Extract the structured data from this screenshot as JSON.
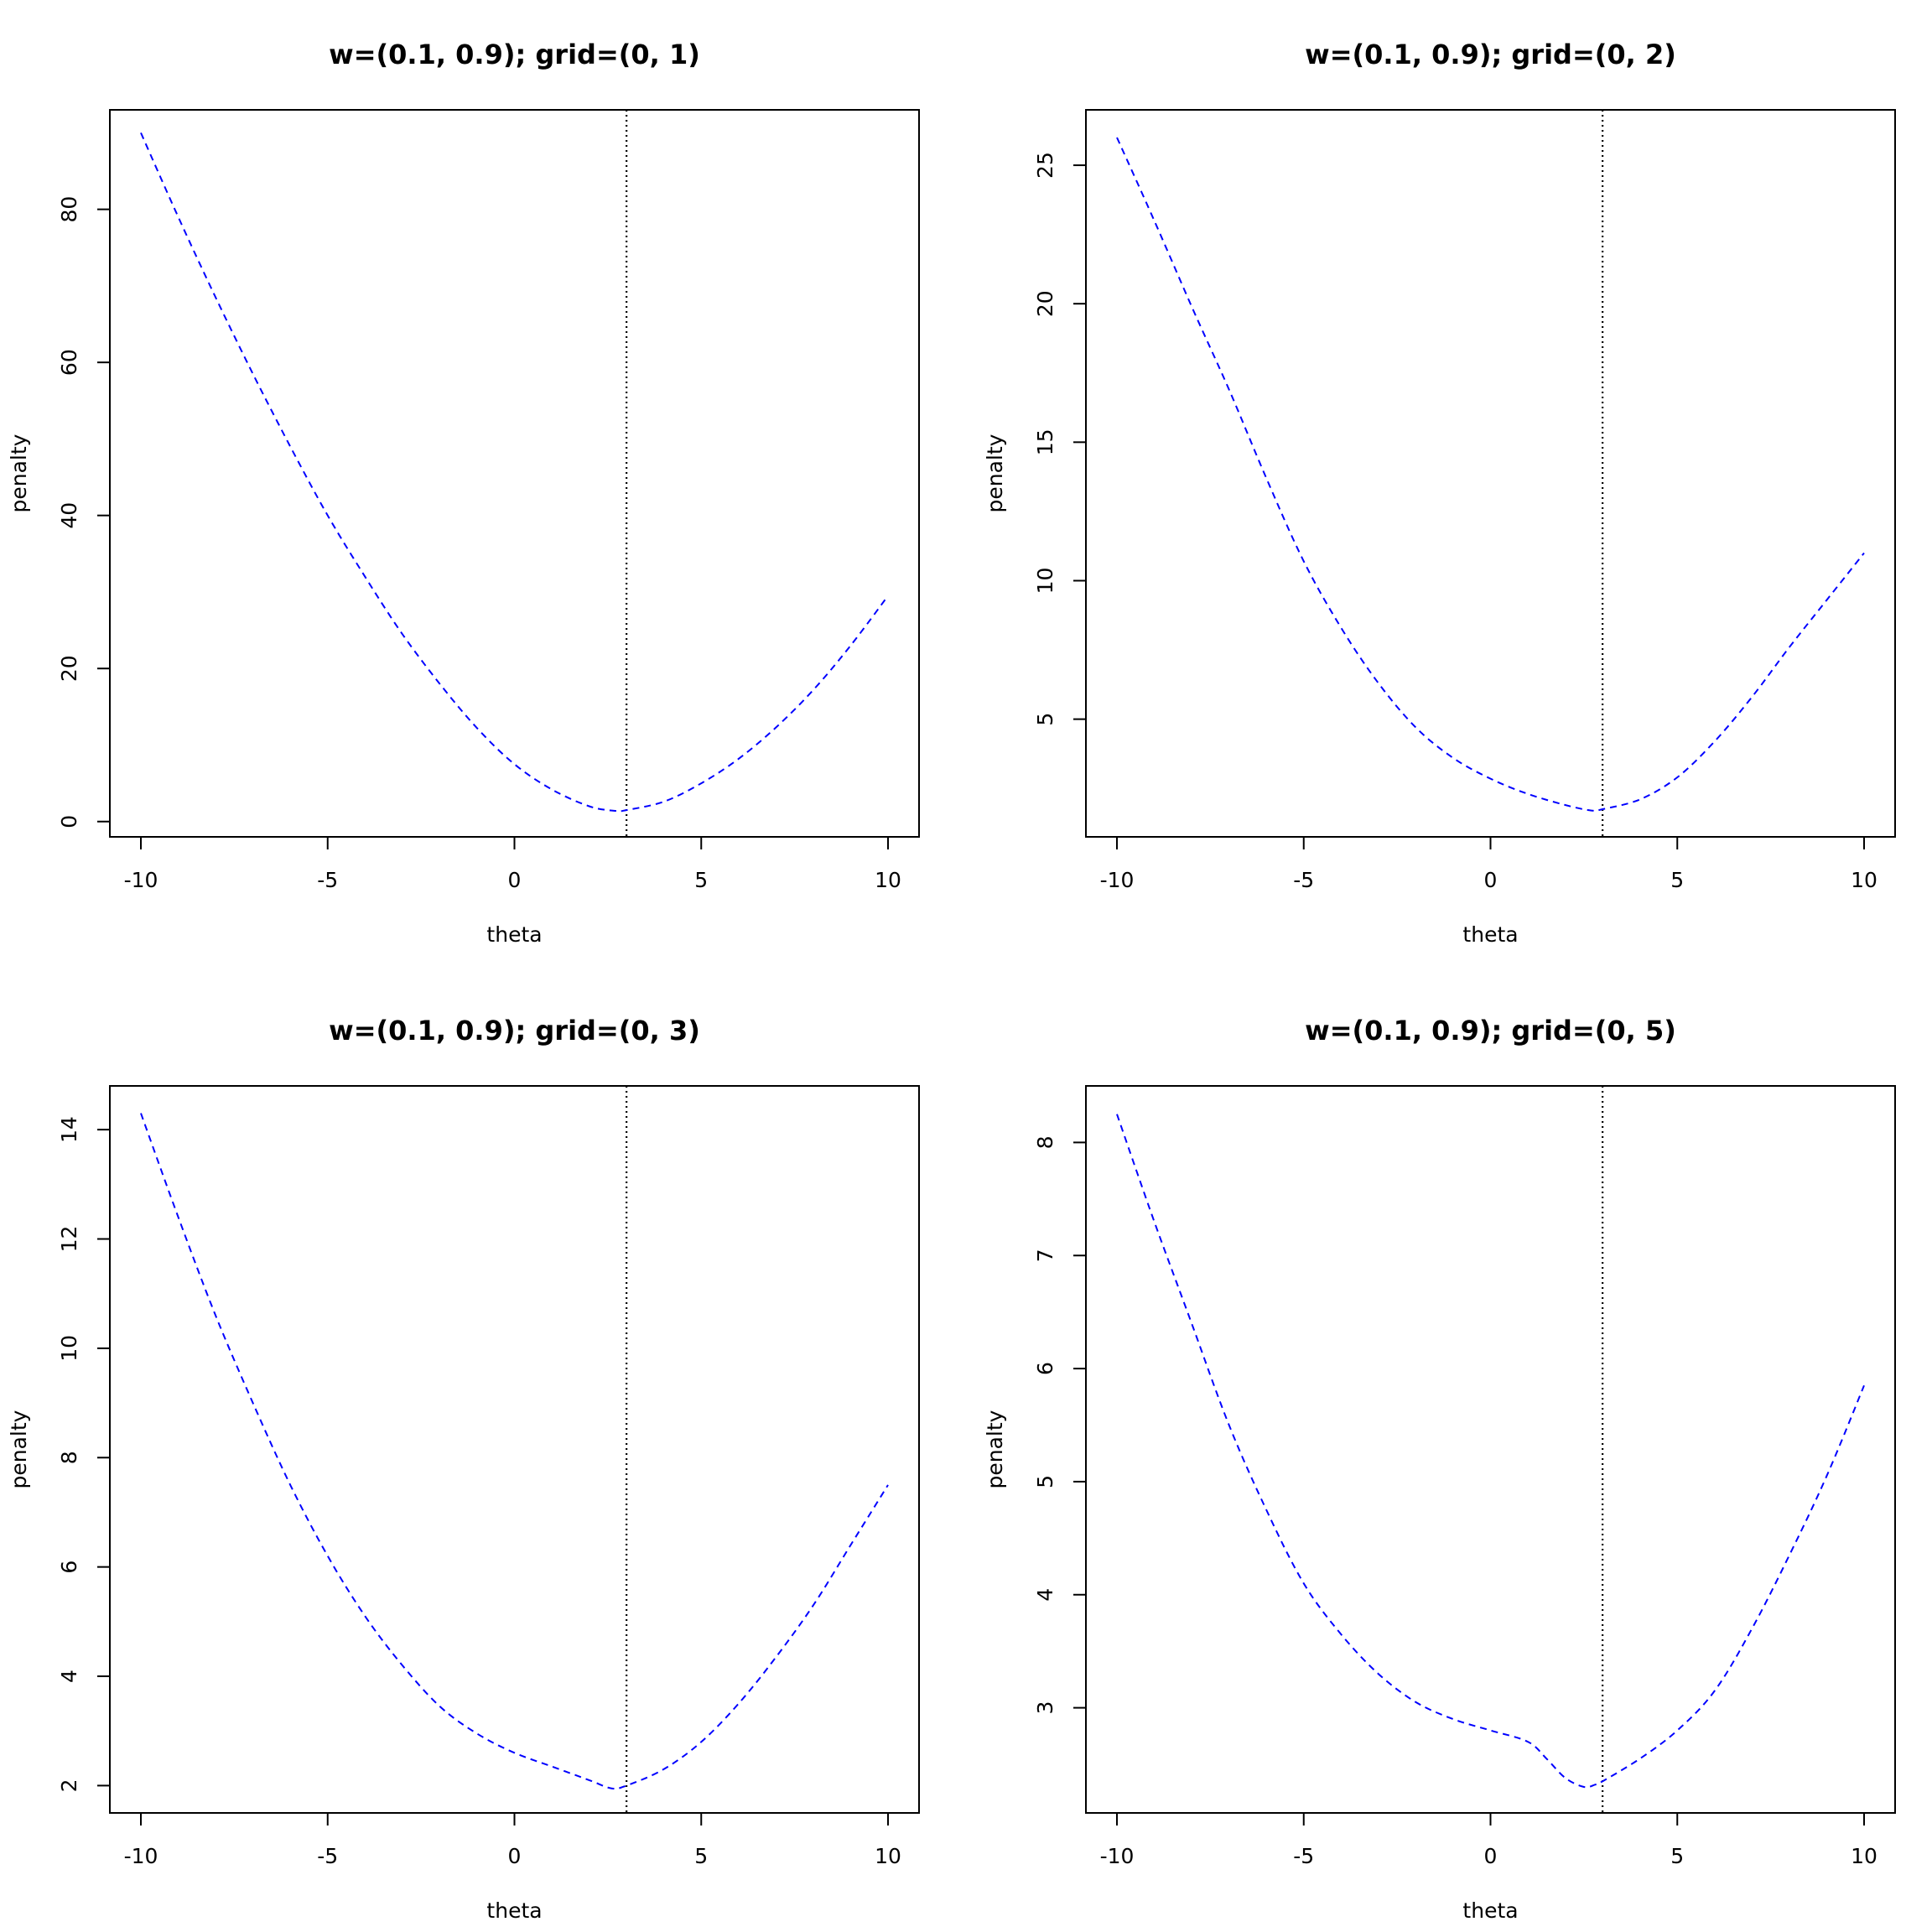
{
  "chart_data": [
    {
      "type": "line",
      "title": "w=(0.1, 0.9); grid=(0, 1)",
      "xlabel": "theta",
      "ylabel": "penalty",
      "xlim": [
        -10,
        10
      ],
      "ylim": [
        -2,
        93
      ],
      "xticks": [
        -10,
        -5,
        0,
        5,
        10
      ],
      "yticks": [
        0,
        20,
        40,
        60,
        80
      ],
      "vline": 3,
      "series": [
        {
          "color": "#0000FF",
          "linestyle": "dashed",
          "x": [
            -10,
            -9,
            -8,
            -7,
            -6,
            -5,
            -4,
            -3,
            -2,
            -1,
            0,
            1,
            2,
            2.7,
            3,
            4,
            5,
            6,
            7,
            8,
            9,
            10
          ],
          "y": [
            90,
            79,
            68.5,
            58.5,
            49,
            40,
            32,
            24.5,
            18,
            12.2,
            7.5,
            4.2,
            2.0,
            1.4,
            1.5,
            2.6,
            5.0,
            8.2,
            12.3,
            17.2,
            23,
            29.5
          ]
        }
      ]
    },
    {
      "type": "line",
      "title": "w=(0.1, 0.9); grid=(0, 2)",
      "xlabel": "theta",
      "ylabel": "penalty",
      "xlim": [
        -10,
        10
      ],
      "ylim": [
        0.75,
        27
      ],
      "xticks": [
        -10,
        -5,
        0,
        5,
        10
      ],
      "yticks": [
        5,
        10,
        15,
        20,
        25
      ],
      "vline": 3,
      "series": [
        {
          "color": "#0000FF",
          "linestyle": "dashed",
          "x": [
            -10,
            -9,
            -8,
            -7,
            -6,
            -5,
            -4,
            -3,
            -2,
            -1,
            0,
            1,
            2,
            2.7,
            3,
            4,
            5,
            6,
            7,
            8,
            9,
            10
          ],
          "y": [
            26.0,
            23.0,
            19.9,
            16.9,
            13.7,
            10.7,
            8.3,
            6.3,
            4.7,
            3.6,
            2.85,
            2.3,
            1.9,
            1.7,
            1.75,
            2.1,
            2.9,
            4.2,
            5.8,
            7.6,
            9.3,
            11.0
          ]
        }
      ]
    },
    {
      "type": "line",
      "title": "w=(0.1, 0.9); grid=(0, 3)",
      "xlabel": "theta",
      "ylabel": "penalty",
      "xlim": [
        -10,
        10
      ],
      "ylim": [
        1.5,
        14.8
      ],
      "xticks": [
        -10,
        -5,
        0,
        5,
        10
      ],
      "yticks": [
        2,
        4,
        6,
        8,
        10,
        12,
        14
      ],
      "vline": 3,
      "series": [
        {
          "color": "#0000FF",
          "linestyle": "dashed",
          "x": [
            -10,
            -9,
            -8,
            -7,
            -6,
            -5,
            -4,
            -3,
            -2,
            -1,
            0,
            1,
            2,
            2.6,
            3,
            4,
            5,
            6,
            7,
            8,
            9,
            10
          ],
          "y": [
            14.3,
            12.4,
            10.6,
            9.0,
            7.5,
            6.2,
            5.1,
            4.2,
            3.45,
            2.95,
            2.6,
            2.35,
            2.1,
            1.95,
            2.0,
            2.3,
            2.8,
            3.5,
            4.35,
            5.3,
            6.4,
            7.5
          ]
        }
      ]
    },
    {
      "type": "line",
      "title": "w=(0.1, 0.9); grid=(0, 5)",
      "xlabel": "theta",
      "ylabel": "penalty",
      "xlim": [
        -10,
        10
      ],
      "ylim": [
        2.07,
        8.5
      ],
      "xticks": [
        -10,
        -5,
        0,
        5,
        10
      ],
      "yticks": [
        3,
        4,
        5,
        6,
        7,
        8
      ],
      "vline": 3,
      "series": [
        {
          "color": "#0000FF",
          "linestyle": "dashed",
          "x": [
            -10,
            -9,
            -8,
            -7,
            -6,
            -5,
            -4,
            -3,
            -2,
            -1,
            0,
            1,
            1.5,
            2,
            2.5,
            2.8,
            3,
            4,
            5,
            6,
            7,
            8,
            9,
            10
          ],
          "y": [
            8.25,
            7.3,
            6.4,
            5.5,
            4.75,
            4.1,
            3.65,
            3.3,
            3.05,
            2.9,
            2.8,
            2.7,
            2.55,
            2.38,
            2.3,
            2.32,
            2.35,
            2.55,
            2.8,
            3.15,
            3.7,
            4.35,
            5.05,
            5.85
          ]
        }
      ]
    }
  ]
}
